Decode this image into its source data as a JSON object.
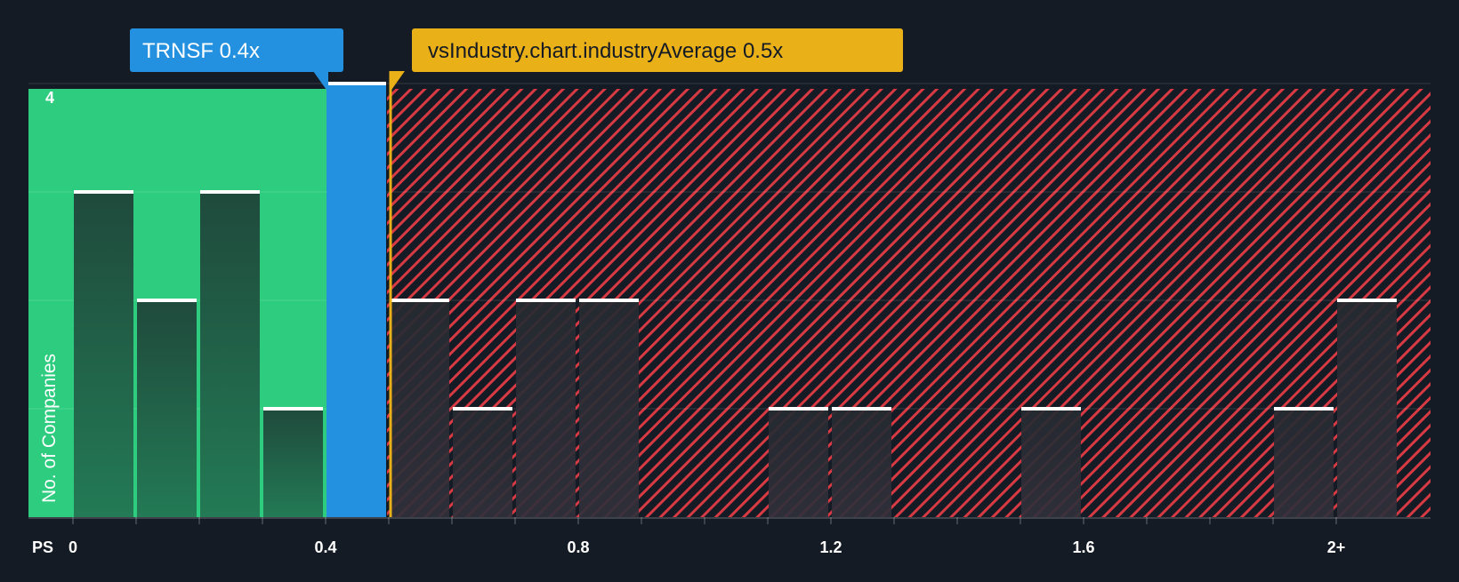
{
  "colors": {
    "background": "#151b24",
    "fair_zone": "#2ecc7f",
    "overvalued_zone": "#d83a44",
    "company_bar": "#2391e0",
    "industry_marker": "#eab018",
    "bar_left": "#1e4a3c",
    "bar_right": "#2a2e36",
    "bar_cap": "#ffffff",
    "axis_text": "#ffffff"
  },
  "company_label": "TRNSF 0.4x",
  "industry_label": "vsIndustry.chart.industryAverage 0.5x",
  "chart_data": {
    "type": "bar",
    "subtype": "histogram",
    "xlabel": "PS",
    "ylabel": "No. of Companies",
    "x_ticks": [
      "0",
      "0.4",
      "0.8",
      "1.2",
      "1.6",
      "2+"
    ],
    "y_ticks": [
      "4"
    ],
    "ylim": [
      0,
      4
    ],
    "bin_width": 0.1,
    "bins": [
      {
        "start": 0.0,
        "count": 3
      },
      {
        "start": 0.1,
        "count": 2
      },
      {
        "start": 0.2,
        "count": 3
      },
      {
        "start": 0.3,
        "count": 1
      },
      {
        "start": 0.4,
        "count": 4,
        "highlight": "company"
      },
      {
        "start": 0.5,
        "count": 2
      },
      {
        "start": 0.6,
        "count": 1
      },
      {
        "start": 0.7,
        "count": 2
      },
      {
        "start": 0.8,
        "count": 2
      },
      {
        "start": 1.1,
        "count": 1
      },
      {
        "start": 1.2,
        "count": 1
      },
      {
        "start": 1.5,
        "count": 1
      },
      {
        "start": 1.9,
        "count": 1
      },
      {
        "start": 2.0,
        "count": 2
      }
    ],
    "company": {
      "ticker": "TRNSF",
      "value": 0.4
    },
    "industry_average": 0.5,
    "grid": true
  }
}
